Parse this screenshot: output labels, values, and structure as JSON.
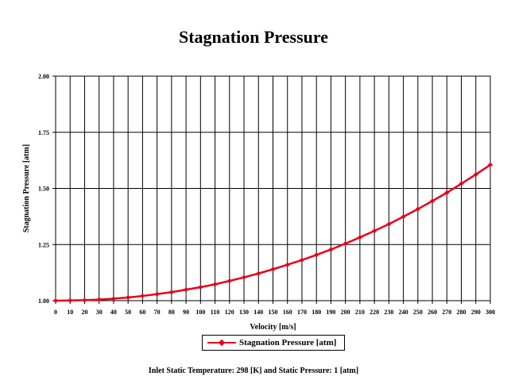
{
  "chart_data": {
    "type": "line",
    "title": "Stagnation Pressure",
    "xlabel": "Velocity [m/s]",
    "ylabel": "Stagnation Pressure [atm]",
    "xlim": [
      0,
      300
    ],
    "ylim": [
      1.0,
      2.0
    ],
    "x_ticks": [
      "0",
      "10",
      "20",
      "30",
      "40",
      "50",
      "60",
      "70",
      "80",
      "90",
      "100",
      "110",
      "120",
      "130",
      "140",
      "150",
      "160",
      "170",
      "180",
      "190",
      "200",
      "210",
      "220",
      "230",
      "240",
      "250",
      "260",
      "270",
      "280",
      "290",
      "300"
    ],
    "y_ticks": [
      "1.00",
      "1.25",
      "1.50",
      "1.75",
      "2.00"
    ],
    "grid": true,
    "legend_position": "bottom",
    "series": [
      {
        "name": "Stagnation Pressure [atm]",
        "color": "#e8001c",
        "x": [
          0,
          10,
          20,
          30,
          40,
          50,
          60,
          70,
          80,
          90,
          100,
          110,
          120,
          130,
          140,
          150,
          160,
          170,
          180,
          190,
          200,
          210,
          220,
          230,
          240,
          250,
          260,
          270,
          280,
          290,
          300
        ],
        "y": [
          1.0,
          1.001,
          1.002,
          1.005,
          1.009,
          1.014,
          1.021,
          1.029,
          1.038,
          1.049,
          1.06,
          1.073,
          1.088,
          1.104,
          1.121,
          1.14,
          1.16,
          1.181,
          1.204,
          1.228,
          1.254,
          1.282,
          1.311,
          1.341,
          1.374,
          1.408,
          1.444,
          1.481,
          1.521,
          1.562,
          1.605
        ]
      }
    ]
  },
  "footnote": "Inlet Static Temperature:  298 [K] and Static Pressure:  1 [atm]"
}
